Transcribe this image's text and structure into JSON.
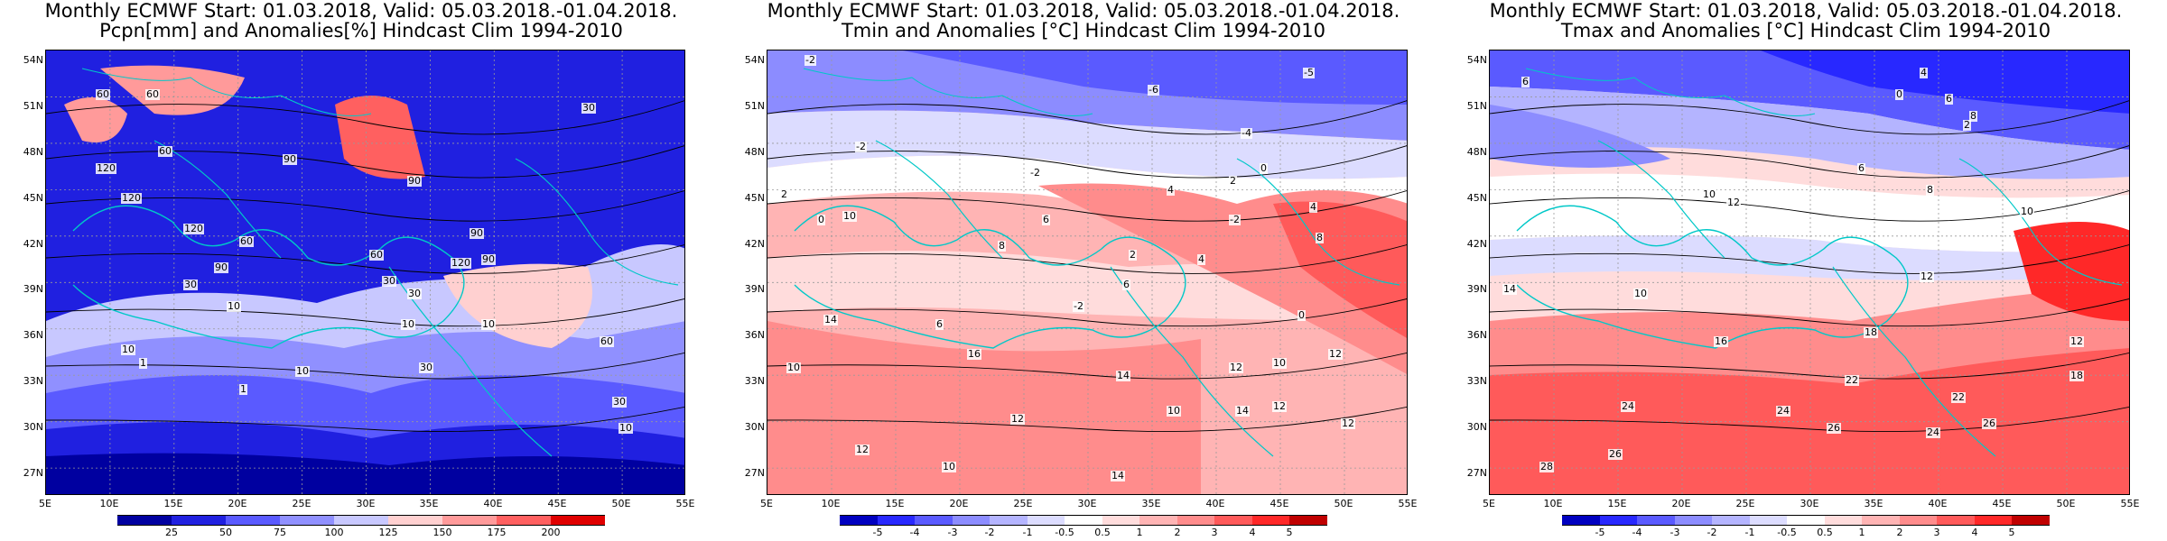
{
  "panels": [
    {
      "title_line1": "Monthly ECMWF Start: 01.03.2018, Valid: 05.03.2018.-01.04.2018.",
      "title_line2": "Pcpn[mm] and Anomalies[%] Hindcast Clim 1994-2010",
      "colorbar_labels": [
        "25",
        "50",
        "75",
        "100",
        "125",
        "150",
        "175",
        "200"
      ],
      "colorbar_colors": [
        "#0000a0",
        "#2020e0",
        "#5a5aff",
        "#9090ff",
        "#c8c8ff",
        "#ffd0d0",
        "#ff9a9a",
        "#ff6060",
        "#e00000"
      ],
      "contour_labels": [
        "60",
        "60",
        "30",
        "120",
        "120",
        "60",
        "90",
        "90",
        "90",
        "120",
        "60",
        "30",
        "120",
        "90",
        "60",
        "30",
        "10",
        "90",
        "10",
        "30",
        "10",
        "1",
        "1",
        "10",
        "10",
        "60",
        "30",
        "10",
        "30"
      ],
      "base_color": "#ffd0d0"
    },
    {
      "title_line1": "Monthly ECMWF Start: 01.03.2018, Valid: 05.03.2018.-01.04.2018.",
      "title_line2": "Tmin and Anomalies [°C] Hindcast Clim 1994-2010",
      "colorbar_labels": [
        "-5",
        "-4",
        "-3",
        "-2",
        "-1",
        "-0.5",
        "0.5",
        "1",
        "2",
        "3",
        "4",
        "5"
      ],
      "colorbar_colors": [
        "#0000c0",
        "#2828ff",
        "#5a5aff",
        "#8c8cff",
        "#b4b4ff",
        "#dcdcff",
        "#ffffff",
        "#ffdcdc",
        "#ffb4b4",
        "#ff8c8c",
        "#ff5a5a",
        "#ff2828",
        "#c00000"
      ],
      "contour_labels": [
        "-2",
        "-5",
        "-6",
        "-4",
        "-2",
        "-2",
        "0",
        "2",
        "4",
        "2",
        "0",
        "10",
        "-2",
        "4",
        "8",
        "6",
        "2",
        "4",
        "-2",
        "6",
        "8",
        "0",
        "14",
        "12",
        "10",
        "16",
        "12",
        "14",
        "12",
        "10",
        "12",
        "10",
        "14",
        "12",
        "6",
        "12",
        "14",
        "10"
      ],
      "base_color": "#ffb4b4"
    },
    {
      "title_line1": "Monthly ECMWF Start: 01.03.2018, Valid: 05.03.2018.-01.04.2018.",
      "title_line2": "Tmax and Anomalies [°C] Hindcast Clim 1994-2010",
      "colorbar_labels": [
        "-5",
        "-4",
        "-3",
        "-2",
        "-1",
        "-0.5",
        "0.5",
        "1",
        "2",
        "3",
        "4",
        "5"
      ],
      "colorbar_colors": [
        "#0000c0",
        "#2828ff",
        "#5a5aff",
        "#8c8cff",
        "#b4b4ff",
        "#dcdcff",
        "#ffffff",
        "#ffdcdc",
        "#ffb4b4",
        "#ff8c8c",
        "#ff5a5a",
        "#ff2828",
        "#c00000"
      ],
      "contour_labels": [
        "6",
        "4",
        "0",
        "2",
        "6",
        "8",
        "10",
        "12",
        "6",
        "8",
        "10",
        "14",
        "10",
        "12",
        "16",
        "18",
        "22",
        "12",
        "18",
        "22",
        "24",
        "26",
        "24",
        "26",
        "28",
        "26",
        "24"
      ],
      "base_color": "#ff9a9a"
    }
  ],
  "lat_labels": [
    "54N",
    "51N",
    "48N",
    "45N",
    "42N",
    "39N",
    "36N",
    "33N",
    "30N",
    "27N"
  ],
  "lon_labels": [
    "5E",
    "10E",
    "15E",
    "20E",
    "25E",
    "30E",
    "35E",
    "40E",
    "45E",
    "50E",
    "55E"
  ],
  "coast_color": "#00c8c8"
}
